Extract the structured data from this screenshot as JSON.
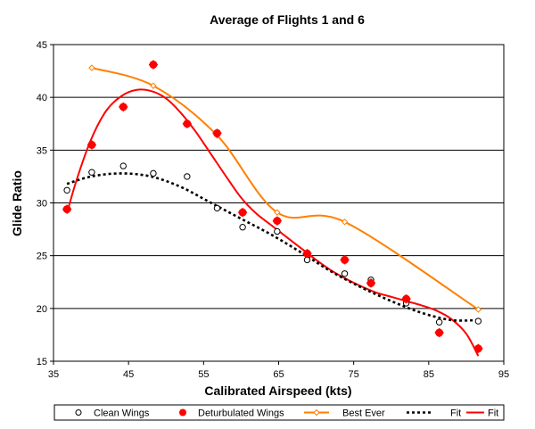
{
  "chart_data": {
    "type": "scatter",
    "title": "Average of Flights 1 and 6",
    "xlabel": "Calibrated Airspeed (kts)",
    "ylabel": "Glide Ratio",
    "xlim": [
      35,
      95
    ],
    "ylim": [
      15,
      45
    ],
    "xticks": [
      35,
      45,
      55,
      65,
      75,
      85,
      95
    ],
    "yticks": [
      15,
      20,
      25,
      30,
      35,
      40,
      45
    ],
    "grid": "horizontal",
    "legend_position": "bottom",
    "series": [
      {
        "name": "Clean Wings",
        "kind": "points",
        "marker": "open-circle",
        "color": "#000000",
        "x": [
          36.8,
          40.1,
          44.3,
          48.3,
          52.8,
          56.8,
          60.2,
          64.8,
          68.8,
          73.8,
          77.3,
          82.0,
          86.4,
          91.6
        ],
        "y": [
          31.2,
          32.9,
          33.5,
          32.8,
          32.5,
          29.5,
          27.7,
          27.3,
          24.6,
          23.3,
          22.7,
          20.5,
          18.7,
          18.8
        ]
      },
      {
        "name": "Deturbulated Wings",
        "kind": "points",
        "marker": "filled-circle",
        "color": "#ff0000",
        "x": [
          36.8,
          40.1,
          44.3,
          48.3,
          52.8,
          56.8,
          60.2,
          64.8,
          68.8,
          73.8,
          77.3,
          82.0,
          86.4,
          91.6
        ],
        "y": [
          29.4,
          35.5,
          39.1,
          43.1,
          37.5,
          36.6,
          29.1,
          28.3,
          25.2,
          24.6,
          22.4,
          20.9,
          17.7,
          16.2
        ]
      },
      {
        "name": "Best Ever",
        "kind": "line-markers",
        "marker": "open-diamond",
        "color": "#ff8000",
        "x": [
          40.1,
          48.3,
          56.8,
          64.8,
          73.8,
          91.6
        ],
        "y": [
          42.8,
          41.1,
          36.4,
          29.1,
          28.2,
          19.9
        ]
      },
      {
        "name": "Fit",
        "kind": "line",
        "style": "dotted",
        "color": "#000000",
        "x": [
          36.8,
          40,
          44,
          48,
          52,
          56,
          60,
          64,
          68,
          72,
          76,
          80,
          84,
          88,
          91.6
        ],
        "y": [
          31.8,
          32.5,
          32.8,
          32.5,
          31.5,
          30.0,
          28.5,
          27.0,
          25.3,
          23.5,
          22.0,
          20.7,
          19.6,
          18.9,
          18.9
        ]
      },
      {
        "name": "Fit",
        "kind": "line",
        "style": "solid",
        "color": "#ff0000",
        "x": [
          36.8,
          38,
          40,
          42,
          44,
          46,
          48,
          50,
          52,
          54,
          56,
          58,
          60,
          62,
          64,
          66,
          68,
          70,
          72,
          74,
          76,
          78,
          80,
          82,
          84,
          86,
          88,
          90,
          91.6
        ],
        "y": [
          29.0,
          32.0,
          36.0,
          38.7,
          40.1,
          40.7,
          40.6,
          39.9,
          38.5,
          36.7,
          34.6,
          32.5,
          30.5,
          29.0,
          27.9,
          26.8,
          25.7,
          24.6,
          23.6,
          22.8,
          22.1,
          21.5,
          21.1,
          20.7,
          20.3,
          19.8,
          19.0,
          17.6,
          15.5
        ]
      }
    ]
  }
}
